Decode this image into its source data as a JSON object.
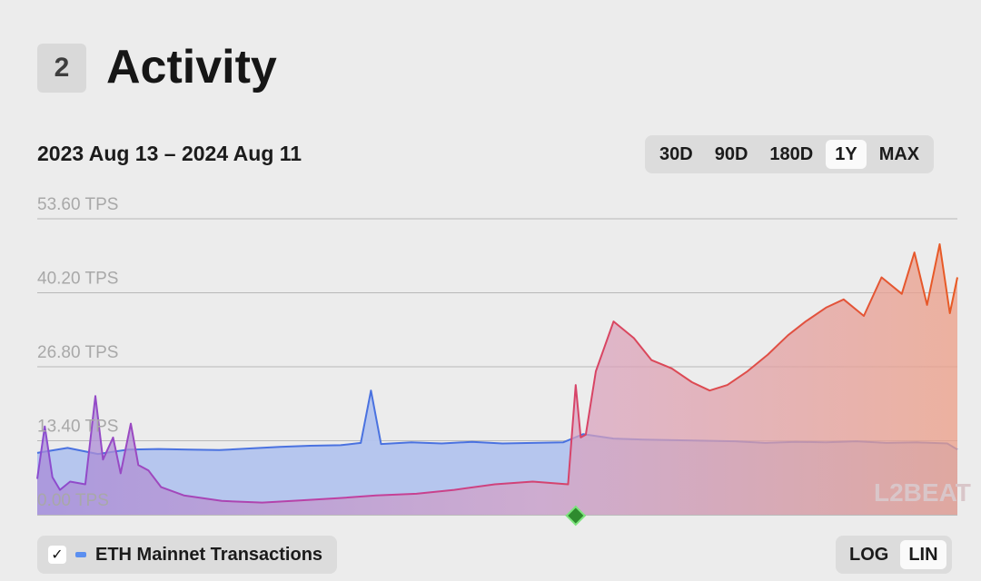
{
  "header": {
    "section_number": "2",
    "title": "Activity"
  },
  "range": {
    "date_range": "2023 Aug 13 – 2024 Aug 11",
    "options": [
      "30D",
      "90D",
      "180D",
      "1Y",
      "MAX"
    ],
    "selected": "1Y"
  },
  "legend": {
    "checked": true,
    "check_glyph": "✓",
    "label": "ETH Mainnet Transactions",
    "swatch_color": "#5b8ff0"
  },
  "scale": {
    "options": [
      "LOG",
      "LIN"
    ],
    "selected": "LIN"
  },
  "watermark": "L2BEAT",
  "chart_data": {
    "type": "area",
    "ylim": [
      0,
      53.6
    ],
    "y_ticks": [
      "0.00 TPS",
      "13.40 TPS",
      "26.80 TPS",
      "40.20 TPS",
      "53.60 TPS"
    ],
    "y_tick_values": [
      0,
      13.4,
      26.8,
      40.2,
      53.6
    ],
    "x_start": "2023-08-13",
    "x_end": "2024-08-11",
    "grid": true,
    "event_marker_date": "2024-03-13",
    "series": [
      {
        "name": "ETH Mainnet Transactions",
        "color": "#4a72e0",
        "fill": "#a9bdeb",
        "x": [
          "2023-08-13",
          "2023-08-25",
          "2023-09-06",
          "2023-09-18",
          "2023-09-30",
          "2023-10-12",
          "2023-10-24",
          "2023-11-05",
          "2023-11-17",
          "2023-11-29",
          "2023-12-11",
          "2023-12-19",
          "2023-12-23",
          "2023-12-27",
          "2024-01-08",
          "2024-01-20",
          "2024-02-01",
          "2024-02-13",
          "2024-02-25",
          "2024-03-08",
          "2024-03-16",
          "2024-03-28",
          "2024-04-09",
          "2024-04-21",
          "2024-05-03",
          "2024-05-15",
          "2024-05-27",
          "2024-06-08",
          "2024-06-20",
          "2024-07-02",
          "2024-07-14",
          "2024-07-26",
          "2024-08-07",
          "2024-08-11"
        ],
        "values": [
          11.2,
          12.1,
          11.0,
          11.8,
          11.9,
          11.8,
          11.7,
          12.0,
          12.3,
          12.5,
          12.6,
          13.0,
          22.5,
          12.8,
          13.1,
          12.9,
          13.2,
          12.9,
          13.0,
          13.1,
          14.6,
          13.8,
          13.6,
          13.5,
          13.4,
          13.3,
          13.0,
          13.2,
          13.1,
          13.3,
          13.0,
          13.1,
          12.9,
          11.8
        ]
      },
      {
        "name": "",
        "color": "#d54a5e",
        "fill": "#e6a9b1",
        "x": [
          "2023-08-13",
          "2023-08-16",
          "2023-08-19",
          "2023-08-22",
          "2023-08-26",
          "2023-09-01",
          "2023-09-05",
          "2023-09-08",
          "2023-09-12",
          "2023-09-15",
          "2023-09-19",
          "2023-09-22",
          "2023-09-26",
          "2023-10-01",
          "2023-10-10",
          "2023-10-25",
          "2023-11-10",
          "2023-11-25",
          "2023-12-10",
          "2023-12-25",
          "2024-01-10",
          "2024-01-25",
          "2024-02-10",
          "2024-02-25",
          "2024-03-10",
          "2024-03-13",
          "2024-03-15",
          "2024-03-17",
          "2024-03-21",
          "2024-03-28",
          "2024-04-05",
          "2024-04-12",
          "2024-04-20",
          "2024-04-28",
          "2024-05-05",
          "2024-05-12",
          "2024-05-20",
          "2024-05-28",
          "2024-06-05",
          "2024-06-12",
          "2024-06-20",
          "2024-06-27",
          "2024-07-05",
          "2024-07-12",
          "2024-07-20",
          "2024-07-25",
          "2024-07-30",
          "2024-08-04",
          "2024-08-08",
          "2024-08-11"
        ],
        "values": [
          6.5,
          16.0,
          6.8,
          4.5,
          6.0,
          5.5,
          21.5,
          10.0,
          14.0,
          7.5,
          16.5,
          9.0,
          8.0,
          5.0,
          3.5,
          2.5,
          2.2,
          2.6,
          3.0,
          3.5,
          3.8,
          4.5,
          5.5,
          6.0,
          5.5,
          23.5,
          14.0,
          14.5,
          26.0,
          35.0,
          32.0,
          28.0,
          26.5,
          24.0,
          22.5,
          23.5,
          26.0,
          29.0,
          32.5,
          35.0,
          37.5,
          39.0,
          36.0,
          43.0,
          40.0,
          47.5,
          38.0,
          49.0,
          36.5,
          43.0
        ]
      }
    ]
  }
}
